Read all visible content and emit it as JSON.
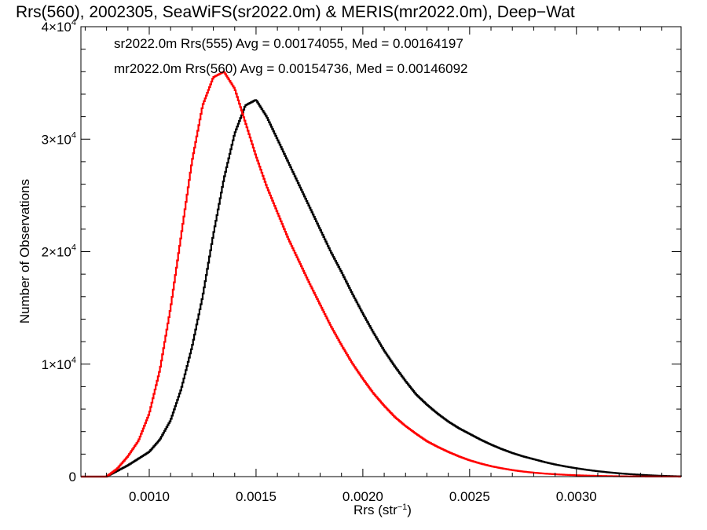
{
  "chart_data": {
    "type": "line",
    "title": "Rrs(560), 2002305, SeaWiFS(sr2022.0m) & MERIS(mr2022.0m), Deep−Wat",
    "xlabel": "Rrs (str",
    "xlabel_sup": "−1",
    "xlabel_close": ")",
    "ylabel": "Number of Observations",
    "xlim": [
      0.00068,
      0.00349
    ],
    "ylim": [
      0,
      40000
    ],
    "grid": false,
    "x_ticks": [
      {
        "value": 0.001,
        "label": "0.0010"
      },
      {
        "value": 0.0015,
        "label": "0.0015"
      },
      {
        "value": 0.002,
        "label": "0.0020"
      },
      {
        "value": 0.0025,
        "label": "0.0025"
      },
      {
        "value": 0.003,
        "label": "0.0030"
      }
    ],
    "y_ticks": [
      {
        "value": 0,
        "label": "0",
        "sup": ""
      },
      {
        "value": 10000,
        "label": "1×10",
        "sup": "4"
      },
      {
        "value": 20000,
        "label": "2×10",
        "sup": "4"
      },
      {
        "value": 30000,
        "label": "3×10",
        "sup": "4"
      },
      {
        "value": 40000,
        "label": "4×10",
        "sup": "4"
      }
    ],
    "annotations": [
      {
        "text": "sr2022.0m Rrs(555) Avg = 0.00174055, Med = 0.00164197",
        "color": "#000000"
      },
      {
        "text": "mr2022.0m Rrs(560) Avg = 0.00154736, Med = 0.00146092",
        "color": "#ff0000"
      }
    ],
    "series": [
      {
        "color": "#000000",
        "points": [
          [
            0.00068,
            0
          ],
          [
            0.0008,
            0
          ],
          [
            0.00085,
            500
          ],
          [
            0.0009,
            1000
          ],
          [
            0.00095,
            1600
          ],
          [
            0.001,
            2200
          ],
          [
            0.00105,
            3300
          ],
          [
            0.0011,
            5000
          ],
          [
            0.00115,
            7800
          ],
          [
            0.0012,
            11500
          ],
          [
            0.00125,
            16000
          ],
          [
            0.0013,
            21500
          ],
          [
            0.00135,
            26500
          ],
          [
            0.0014,
            30500
          ],
          [
            0.00145,
            33000
          ],
          [
            0.0015,
            33500
          ],
          [
            0.00155,
            32000
          ],
          [
            0.0016,
            30000
          ],
          [
            0.00165,
            28000
          ],
          [
            0.0017,
            26000
          ],
          [
            0.00175,
            24000
          ],
          [
            0.0018,
            22000
          ],
          [
            0.00185,
            20000
          ],
          [
            0.0019,
            18200
          ],
          [
            0.00195,
            16300
          ],
          [
            0.002,
            14500
          ],
          [
            0.00205,
            12800
          ],
          [
            0.0021,
            11200
          ],
          [
            0.00215,
            9800
          ],
          [
            0.0022,
            8500
          ],
          [
            0.00225,
            7300
          ],
          [
            0.0023,
            6400
          ],
          [
            0.00235,
            5600
          ],
          [
            0.0024,
            4900
          ],
          [
            0.00245,
            4300
          ],
          [
            0.0025,
            3800
          ],
          [
            0.00255,
            3300
          ],
          [
            0.0026,
            2850
          ],
          [
            0.00265,
            2450
          ],
          [
            0.0027,
            2100
          ],
          [
            0.00275,
            1800
          ],
          [
            0.0028,
            1550
          ],
          [
            0.00285,
            1300
          ],
          [
            0.0029,
            1080
          ],
          [
            0.00295,
            900
          ],
          [
            0.003,
            740
          ],
          [
            0.00305,
            600
          ],
          [
            0.0031,
            480
          ],
          [
            0.00315,
            380
          ],
          [
            0.0032,
            290
          ],
          [
            0.00325,
            220
          ],
          [
            0.0033,
            160
          ],
          [
            0.00335,
            110
          ],
          [
            0.0034,
            70
          ],
          [
            0.00345,
            40
          ],
          [
            0.00349,
            20
          ]
        ]
      },
      {
        "color": "#ff0000",
        "points": [
          [
            0.00068,
            0
          ],
          [
            0.0008,
            0
          ],
          [
            0.00085,
            700
          ],
          [
            0.0009,
            1800
          ],
          [
            0.00095,
            3200
          ],
          [
            0.001,
            5600
          ],
          [
            0.00105,
            9500
          ],
          [
            0.0011,
            15000
          ],
          [
            0.00115,
            21500
          ],
          [
            0.0012,
            28000
          ],
          [
            0.00125,
            33000
          ],
          [
            0.0013,
            35500
          ],
          [
            0.00135,
            36000
          ],
          [
            0.0014,
            34500
          ],
          [
            0.00145,
            31500
          ],
          [
            0.0015,
            28500
          ],
          [
            0.00155,
            25800
          ],
          [
            0.0016,
            23500
          ],
          [
            0.00165,
            21200
          ],
          [
            0.0017,
            19200
          ],
          [
            0.00175,
            17200
          ],
          [
            0.0018,
            15300
          ],
          [
            0.00185,
            13400
          ],
          [
            0.0019,
            11700
          ],
          [
            0.00195,
            10100
          ],
          [
            0.002,
            8700
          ],
          [
            0.00205,
            7400
          ],
          [
            0.0021,
            6300
          ],
          [
            0.00215,
            5300
          ],
          [
            0.0022,
            4500
          ],
          [
            0.00225,
            3800
          ],
          [
            0.0023,
            3150
          ],
          [
            0.00235,
            2650
          ],
          [
            0.0024,
            2200
          ],
          [
            0.00245,
            1800
          ],
          [
            0.0025,
            1450
          ],
          [
            0.00255,
            1170
          ],
          [
            0.0026,
            930
          ],
          [
            0.00265,
            740
          ],
          [
            0.0027,
            580
          ],
          [
            0.00275,
            450
          ],
          [
            0.0028,
            350
          ],
          [
            0.00285,
            270
          ],
          [
            0.0029,
            210
          ],
          [
            0.00295,
            160
          ],
          [
            0.003,
            120
          ],
          [
            0.00305,
            90
          ],
          [
            0.0031,
            65
          ],
          [
            0.00315,
            45
          ],
          [
            0.0032,
            30
          ],
          [
            0.00325,
            20
          ],
          [
            0.0033,
            14
          ],
          [
            0.00335,
            9
          ],
          [
            0.0034,
            6
          ],
          [
            0.00345,
            4
          ],
          [
            0.00349,
            2
          ]
        ]
      }
    ]
  }
}
